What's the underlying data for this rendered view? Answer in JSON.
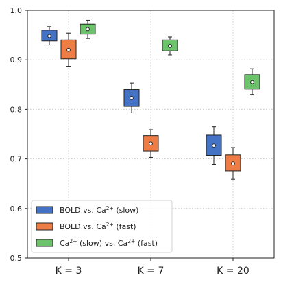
{
  "chart_data": {
    "type": "boxplot",
    "title": "",
    "xlabel": "",
    "ylabel": "",
    "categories": [
      "K = 3",
      "K = 7",
      "K = 20"
    ],
    "ylim": [
      0.5,
      1.0
    ],
    "yticks": [
      "0.5",
      "0.6",
      "0.7",
      "0.8",
      "0.9",
      "1.0"
    ],
    "ytick_values": [
      0.5,
      0.6,
      0.7,
      0.8,
      0.9,
      1.0
    ],
    "grid": true,
    "legend_position": "lower-left",
    "series": [
      {
        "label_main": "BOLD vs. Ca",
        "label_sup": "2+",
        "label_tail": " (slow)",
        "color": "#4472c4",
        "boxes": [
          {
            "whisker_low": 0.93,
            "q1": 0.938,
            "mean": 0.948,
            "q3": 0.96,
            "whisker_high": 0.967
          },
          {
            "whisker_low": 0.793,
            "q1": 0.806,
            "mean": 0.823,
            "q3": 0.84,
            "whisker_high": 0.853
          },
          {
            "whisker_low": 0.689,
            "q1": 0.707,
            "mean": 0.727,
            "q3": 0.748,
            "whisker_high": 0.765
          }
        ]
      },
      {
        "label_main": "BOLD vs. Ca",
        "label_sup": "2+",
        "label_tail": " (fast)",
        "color": "#ed7d45",
        "boxes": [
          {
            "whisker_low": 0.887,
            "q1": 0.902,
            "mean": 0.92,
            "q3": 0.94,
            "whisker_high": 0.954
          },
          {
            "whisker_low": 0.703,
            "q1": 0.716,
            "mean": 0.731,
            "q3": 0.747,
            "whisker_high": 0.759
          },
          {
            "whisker_low": 0.659,
            "q1": 0.676,
            "mean": 0.691,
            "q3": 0.708,
            "whisker_high": 0.723
          }
        ]
      },
      {
        "label_main": "Ca",
        "label_sup": "2+",
        "label_mid": " (slow) vs. Ca",
        "label_sup2": "2+",
        "label_tail": " (fast)",
        "color": "#6cc36c",
        "boxes": [
          {
            "whisker_low": 0.943,
            "q1": 0.952,
            "mean": 0.962,
            "q3": 0.972,
            "whisker_high": 0.98
          },
          {
            "whisker_low": 0.91,
            "q1": 0.918,
            "mean": 0.928,
            "q3": 0.94,
            "whisker_high": 0.946
          },
          {
            "whisker_low": 0.83,
            "q1": 0.841,
            "mean": 0.855,
            "q3": 0.87,
            "whisker_high": 0.882
          }
        ]
      }
    ]
  }
}
